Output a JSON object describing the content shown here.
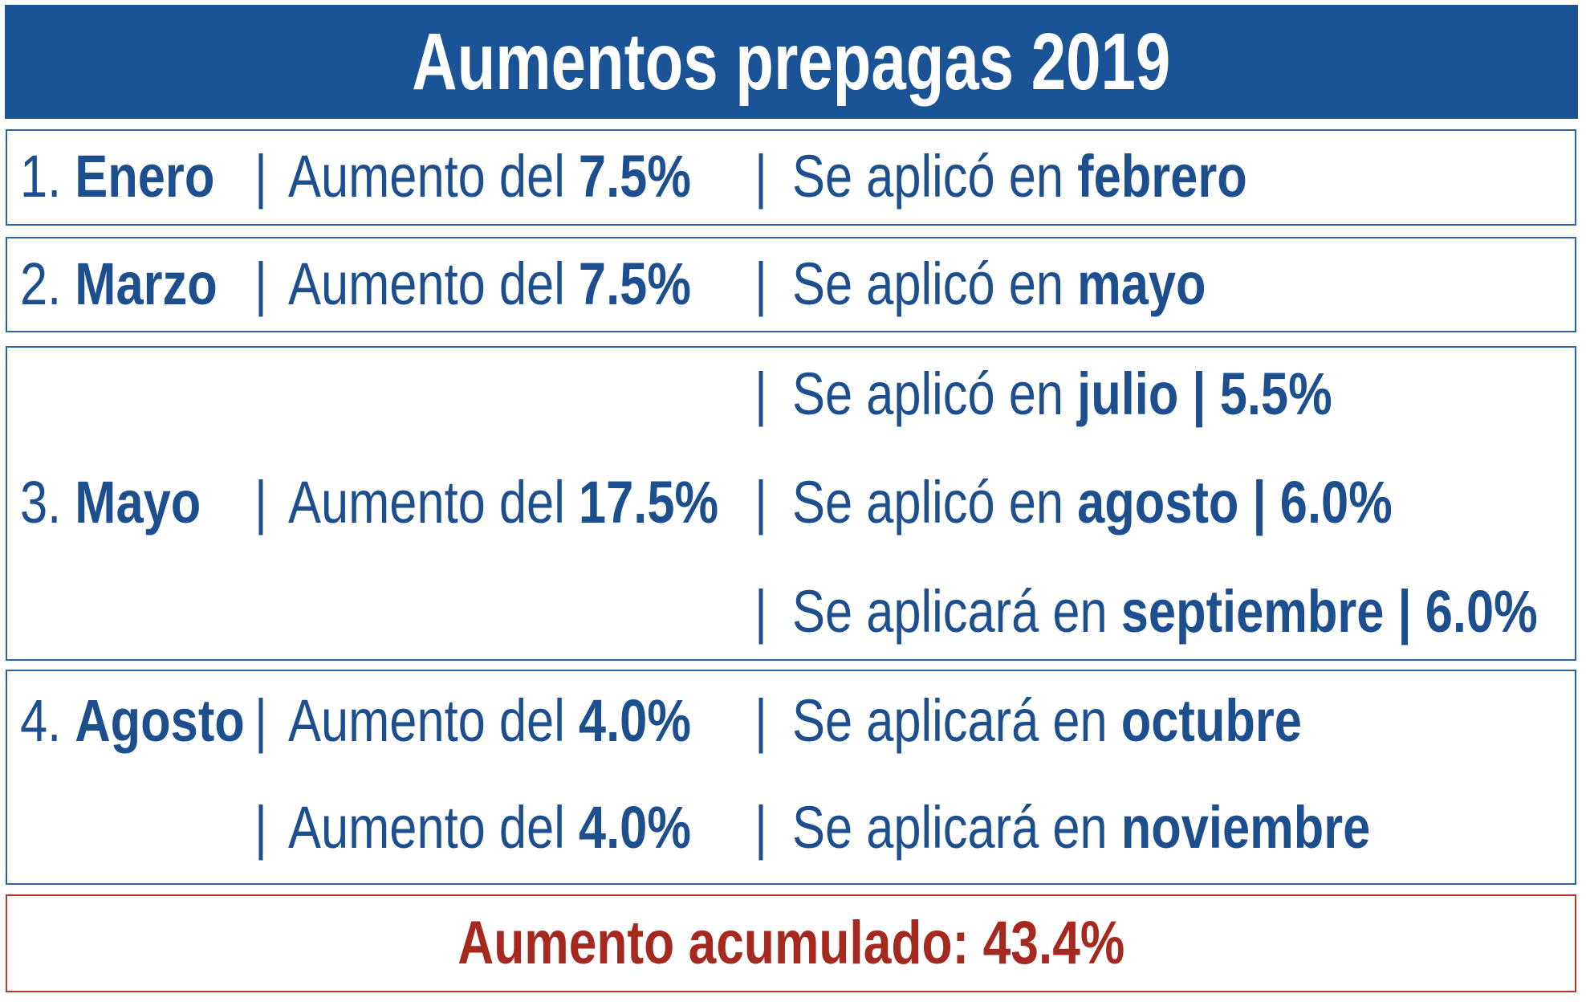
{
  "colors": {
    "title_background": "#1a5496",
    "text": "#1d4f8e",
    "border": "#2d64a5",
    "total": "#a6291f",
    "total_border": "#b5362c"
  },
  "chart_data": {
    "type": "table",
    "title": "Aumentos prepagas 2019",
    "separator": "|",
    "rows": [
      {
        "number": "1.",
        "month": "Enero",
        "increases": [
          {
            "label": "Aumento del",
            "value": "7.5%"
          }
        ],
        "applications": [
          {
            "label": "Se aplicó en",
            "month": "febrero"
          }
        ]
      },
      {
        "number": "2.",
        "month": "Marzo",
        "increases": [
          {
            "label": "Aumento del",
            "value": "7.5%"
          }
        ],
        "applications": [
          {
            "label": "Se aplicó en",
            "month": "mayo"
          }
        ]
      },
      {
        "number": "3.",
        "month": "Mayo",
        "increases": [
          {
            "label": "Aumento del",
            "value": "17.5%"
          }
        ],
        "applications": [
          {
            "label": "Se aplicó en",
            "month": "julio",
            "value": "5.5%"
          },
          {
            "label": "Se aplicó en",
            "month": "agosto",
            "value": "6.0%"
          },
          {
            "label": "Se aplicará en",
            "month": "septiembre",
            "value": "6.0%"
          }
        ]
      },
      {
        "number": "4.",
        "month": "Agosto",
        "increases": [
          {
            "label": "Aumento del",
            "value": "4.0%"
          },
          {
            "label": "Aumento del",
            "value": "4.0%"
          }
        ],
        "applications": [
          {
            "label": "Se aplicará en",
            "month": "octubre"
          },
          {
            "label": "Se aplicará en",
            "month": "noviembre"
          }
        ]
      }
    ],
    "total": {
      "label": "Aumento acumulado:",
      "value": "43.4%"
    }
  }
}
